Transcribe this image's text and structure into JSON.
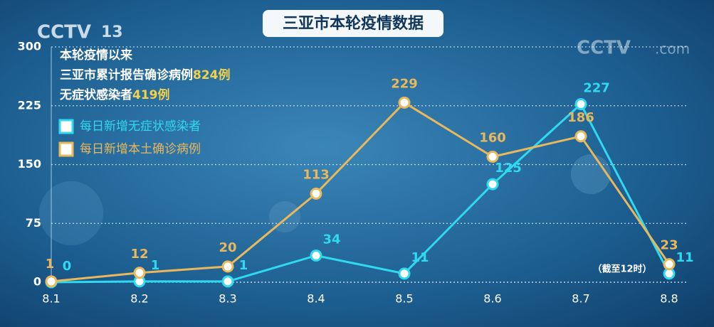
{
  "chart_data": {
    "type": "line",
    "title": "三亚市本轮疫情数据",
    "summary": {
      "heading": "本轮疫情以来",
      "confirmed_label": "三亚市累计报告确诊病例",
      "confirmed_total": "824例",
      "asymptomatic_label": "无症状感染者",
      "asymptomatic_total": "419例"
    },
    "note": "（截至12时）",
    "categories": [
      "8.1",
      "8.2",
      "8.3",
      "8.4",
      "8.5",
      "8.6",
      "8.7",
      "8.8"
    ],
    "series": [
      {
        "name": "每日新增无症状感染者",
        "color": "#2fd9ef",
        "values": [
          0,
          1,
          1,
          34,
          11,
          125,
          227,
          11
        ]
      },
      {
        "name": "每日新增本土确诊病例",
        "color": "#e9b75c",
        "values": [
          1,
          12,
          20,
          113,
          229,
          160,
          186,
          23
        ]
      }
    ],
    "ylim": [
      0,
      300
    ],
    "yticks": [
      0,
      75,
      150,
      225,
      300
    ],
    "grid": true
  },
  "brand": {
    "left": "CCTV",
    "left_channel": "13",
    "right": "CCTV",
    "right_suffix": ".com"
  }
}
